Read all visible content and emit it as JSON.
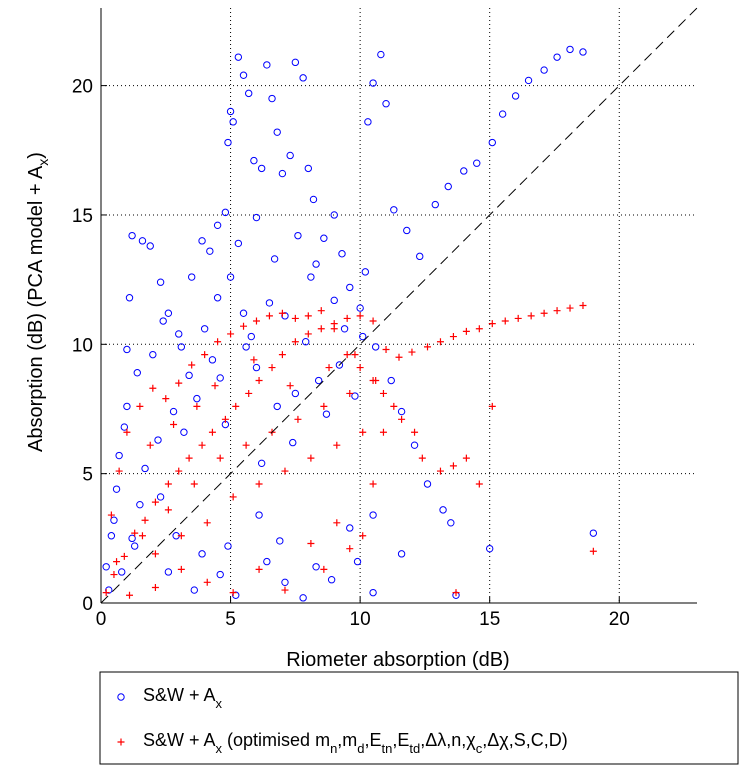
{
  "chart_data": {
    "type": "scatter",
    "title": "",
    "xlabel": "Riometer absorption (dB)",
    "ylabel_main": "Absorption (dB) (PCA model + A",
    "ylabel_sub": "x",
    "ylabel_tail": ")",
    "xlim": [
      0,
      23
    ],
    "ylim": [
      0,
      23
    ],
    "xticks": [
      0,
      5,
      10,
      15,
      20
    ],
    "yticks": [
      0,
      5,
      10,
      15,
      20
    ],
    "grid": "dotted, upper-right region",
    "reference_line": {
      "style": "dashed",
      "color": "#000000",
      "x": [
        0,
        23
      ],
      "y": [
        0,
        23
      ]
    },
    "legend_placement": "below plot",
    "series": [
      {
        "label_parts": [
          "S&W + A",
          "x",
          ""
        ],
        "marker": "circle",
        "color": "#0000ff",
        "points": [
          [
            0.3,
            0.5
          ],
          [
            0.8,
            1.2
          ],
          [
            1.2,
            2.5
          ],
          [
            1.5,
            3.8
          ],
          [
            0.5,
            3.2
          ],
          [
            0.9,
            6.8
          ],
          [
            1.0,
            9.8
          ],
          [
            1.1,
            11.8
          ],
          [
            1.2,
            14.2
          ],
          [
            1.6,
            14.0
          ],
          [
            1.9,
            13.8
          ],
          [
            2.3,
            12.4
          ],
          [
            2.6,
            11.2
          ],
          [
            3.0,
            10.4
          ],
          [
            3.5,
            12.6
          ],
          [
            3.9,
            14.0
          ],
          [
            4.2,
            13.6
          ],
          [
            4.5,
            14.6
          ],
          [
            4.8,
            15.1
          ],
          [
            4.9,
            17.8
          ],
          [
            5.0,
            19.0
          ],
          [
            5.1,
            18.6
          ],
          [
            5.3,
            21.1
          ],
          [
            5.5,
            20.4
          ],
          [
            5.7,
            19.7
          ],
          [
            5.9,
            17.1
          ],
          [
            6.2,
            16.8
          ],
          [
            6.4,
            20.8
          ],
          [
            6.6,
            19.5
          ],
          [
            6.8,
            18.2
          ],
          [
            7.0,
            16.6
          ],
          [
            7.3,
            17.3
          ],
          [
            7.5,
            20.9
          ],
          [
            7.8,
            20.3
          ],
          [
            8.0,
            16.8
          ],
          [
            8.2,
            15.6
          ],
          [
            8.6,
            14.1
          ],
          [
            9.0,
            15.0
          ],
          [
            9.3,
            13.5
          ],
          [
            9.6,
            12.2
          ],
          [
            10.0,
            11.4
          ],
          [
            10.3,
            18.6
          ],
          [
            10.5,
            20.1
          ],
          [
            10.8,
            21.2
          ],
          [
            11.0,
            19.3
          ],
          [
            11.3,
            15.2
          ],
          [
            11.8,
            14.4
          ],
          [
            12.3,
            13.4
          ],
          [
            12.9,
            15.4
          ],
          [
            13.4,
            16.1
          ],
          [
            14.0,
            16.7
          ],
          [
            14.5,
            17.0
          ],
          [
            15.1,
            17.8
          ],
          [
            15.5,
            18.9
          ],
          [
            16.0,
            19.6
          ],
          [
            16.5,
            20.2
          ],
          [
            17.1,
            20.6
          ],
          [
            17.6,
            21.1
          ],
          [
            18.1,
            21.4
          ],
          [
            18.6,
            21.3
          ],
          [
            10.1,
            10.3
          ],
          [
            9.2,
            9.2
          ],
          [
            8.4,
            8.6
          ],
          [
            7.5,
            8.1
          ],
          [
            6.8,
            7.6
          ],
          [
            6.0,
            9.1
          ],
          [
            5.5,
            11.2
          ],
          [
            5.0,
            12.6
          ],
          [
            4.5,
            11.8
          ],
          [
            4.0,
            10.6
          ],
          [
            3.4,
            8.8
          ],
          [
            2.8,
            7.4
          ],
          [
            2.2,
            6.3
          ],
          [
            1.7,
            5.2
          ],
          [
            3.2,
            6.6
          ],
          [
            4.6,
            8.7
          ],
          [
            5.8,
            10.3
          ],
          [
            7.1,
            11.1
          ],
          [
            8.1,
            12.6
          ],
          [
            9.0,
            11.7
          ],
          [
            10.6,
            9.9
          ],
          [
            11.2,
            8.6
          ],
          [
            11.6,
            7.4
          ],
          [
            12.1,
            6.1
          ],
          [
            12.6,
            4.6
          ],
          [
            13.2,
            3.6
          ],
          [
            13.5,
            3.1
          ],
          [
            15.0,
            2.1
          ],
          [
            19.0,
            2.7
          ],
          [
            11.6,
            1.9
          ],
          [
            10.5,
            3.4
          ],
          [
            9.6,
            2.9
          ],
          [
            8.3,
            1.4
          ],
          [
            7.1,
            0.8
          ],
          [
            6.4,
            1.6
          ],
          [
            5.2,
            0.3
          ],
          [
            4.6,
            1.1
          ],
          [
            3.6,
            0.5
          ],
          [
            2.6,
            1.2
          ],
          [
            10.5,
            0.4
          ],
          [
            13.7,
            0.3
          ],
          [
            7.8,
            0.2
          ],
          [
            6.9,
            2.4
          ],
          [
            8.9,
            0.9
          ],
          [
            9.9,
            1.6
          ],
          [
            6.1,
            3.4
          ],
          [
            4.9,
            2.2
          ],
          [
            3.9,
            1.9
          ],
          [
            2.9,
            2.6
          ],
          [
            0.2,
            1.4
          ],
          [
            0.4,
            2.6
          ],
          [
            0.6,
            4.4
          ],
          [
            0.7,
            5.7
          ],
          [
            1.0,
            7.6
          ],
          [
            1.4,
            8.9
          ],
          [
            2.0,
            9.6
          ],
          [
            2.4,
            10.9
          ],
          [
            3.1,
            9.9
          ],
          [
            5.3,
            13.9
          ],
          [
            6.0,
            14.9
          ],
          [
            6.7,
            13.3
          ],
          [
            7.6,
            14.2
          ],
          [
            8.3,
            13.1
          ],
          [
            9.4,
            10.6
          ],
          [
            10.2,
            12.8
          ],
          [
            7.9,
            10.1
          ],
          [
            6.5,
            11.6
          ],
          [
            5.6,
            9.9
          ],
          [
            4.3,
            9.4
          ],
          [
            3.7,
            7.9
          ],
          [
            4.8,
            6.9
          ],
          [
            6.2,
            5.4
          ],
          [
            7.4,
            6.2
          ],
          [
            8.7,
            7.3
          ],
          [
            9.8,
            8.0
          ],
          [
            2.3,
            4.1
          ],
          [
            1.3,
            2.2
          ]
        ]
      },
      {
        "label_parts": [
          "S&W + A",
          "x",
          " (optimised m",
          "n",
          ",m",
          "d",
          ",E",
          "tn",
          ",E",
          "td",
          ",Δλ,n,χ",
          "c",
          ",Δχ,S,C,D)"
        ],
        "marker": "plus",
        "color": "#ff0000",
        "points": [
          [
            0.2,
            0.4
          ],
          [
            0.5,
            1.1
          ],
          [
            0.9,
            1.8
          ],
          [
            1.3,
            2.7
          ],
          [
            1.7,
            3.2
          ],
          [
            2.1,
            3.9
          ],
          [
            2.6,
            4.6
          ],
          [
            3.0,
            5.1
          ],
          [
            3.4,
            5.6
          ],
          [
            3.9,
            6.1
          ],
          [
            4.3,
            6.6
          ],
          [
            4.8,
            7.1
          ],
          [
            5.2,
            7.6
          ],
          [
            5.7,
            8.1
          ],
          [
            6.1,
            8.6
          ],
          [
            6.6,
            9.1
          ],
          [
            7.0,
            9.6
          ],
          [
            7.5,
            10.1
          ],
          [
            8.0,
            10.4
          ],
          [
            8.5,
            10.6
          ],
          [
            9.0,
            10.8
          ],
          [
            9.5,
            11.0
          ],
          [
            10.0,
            11.1
          ],
          [
            10.5,
            10.9
          ],
          [
            11.0,
            9.8
          ],
          [
            11.5,
            9.5
          ],
          [
            12.0,
            9.7
          ],
          [
            12.6,
            9.9
          ],
          [
            13.1,
            10.1
          ],
          [
            13.6,
            10.3
          ],
          [
            14.1,
            10.5
          ],
          [
            14.6,
            10.6
          ],
          [
            15.1,
            10.8
          ],
          [
            15.6,
            10.9
          ],
          [
            16.1,
            11.0
          ],
          [
            16.6,
            11.1
          ],
          [
            17.1,
            11.2
          ],
          [
            17.6,
            11.3
          ],
          [
            18.1,
            11.4
          ],
          [
            18.6,
            11.5
          ],
          [
            11.6,
            7.1
          ],
          [
            12.1,
            6.6
          ],
          [
            12.4,
            5.6
          ],
          [
            13.1,
            5.1
          ],
          [
            13.6,
            5.3
          ],
          [
            14.1,
            5.6
          ],
          [
            14.6,
            4.6
          ],
          [
            15.1,
            7.6
          ],
          [
            19.0,
            2.0
          ],
          [
            13.7,
            0.4
          ],
          [
            10.9,
            6.6
          ],
          [
            10.5,
            4.6
          ],
          [
            10.1,
            2.6
          ],
          [
            9.6,
            2.1
          ],
          [
            9.1,
            3.1
          ],
          [
            8.6,
            1.3
          ],
          [
            8.1,
            2.3
          ],
          [
            7.1,
            0.5
          ],
          [
            6.1,
            1.3
          ],
          [
            5.1,
            0.4
          ],
          [
            4.1,
            0.8
          ],
          [
            3.1,
            1.3
          ],
          [
            2.1,
            0.6
          ],
          [
            1.1,
            0.3
          ],
          [
            0.4,
            3.4
          ],
          [
            0.7,
            5.1
          ],
          [
            1.0,
            6.6
          ],
          [
            1.5,
            7.6
          ],
          [
            2.0,
            8.3
          ],
          [
            2.5,
            7.9
          ],
          [
            3.0,
            8.5
          ],
          [
            3.5,
            9.2
          ],
          [
            4.0,
            9.6
          ],
          [
            4.5,
            10.1
          ],
          [
            5.0,
            10.4
          ],
          [
            5.5,
            10.7
          ],
          [
            6.0,
            10.9
          ],
          [
            6.5,
            11.1
          ],
          [
            7.0,
            11.2
          ],
          [
            7.5,
            11.0
          ],
          [
            8.0,
            11.1
          ],
          [
            8.5,
            11.3
          ],
          [
            9.0,
            10.6
          ],
          [
            9.5,
            9.6
          ],
          [
            10.0,
            9.1
          ],
          [
            10.5,
            8.6
          ],
          [
            10.9,
            8.1
          ],
          [
            11.3,
            7.6
          ],
          [
            5.1,
            4.1
          ],
          [
            6.1,
            4.6
          ],
          [
            7.1,
            5.1
          ],
          [
            8.1,
            5.6
          ],
          [
            9.1,
            6.1
          ],
          [
            10.1,
            6.6
          ],
          [
            4.1,
            3.1
          ],
          [
            3.1,
            2.6
          ],
          [
            2.1,
            1.9
          ],
          [
            6.6,
            6.6
          ],
          [
            5.6,
            6.1
          ],
          [
            4.6,
            5.6
          ],
          [
            3.6,
            4.6
          ],
          [
            2.6,
            3.6
          ],
          [
            1.6,
            2.6
          ],
          [
            0.6,
            1.6
          ],
          [
            7.6,
            7.1
          ],
          [
            8.6,
            7.6
          ],
          [
            9.6,
            8.1
          ],
          [
            10.6,
            8.6
          ],
          [
            1.9,
            6.1
          ],
          [
            2.8,
            6.9
          ],
          [
            3.7,
            7.6
          ],
          [
            4.4,
            8.4
          ],
          [
            5.9,
            9.4
          ],
          [
            7.3,
            8.4
          ],
          [
            8.8,
            9.1
          ],
          [
            9.8,
            9.6
          ]
        ]
      }
    ]
  }
}
